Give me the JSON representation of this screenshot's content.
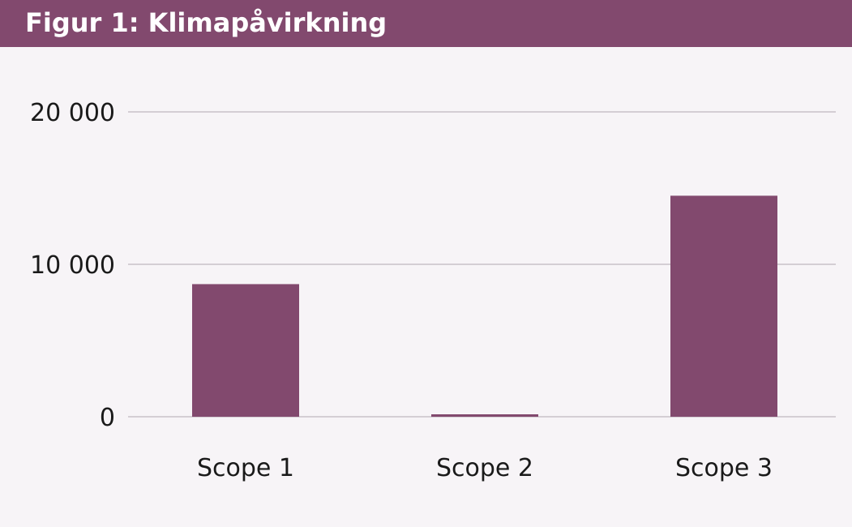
{
  "title": "Figur 1: Klimapåvirkning",
  "colors": {
    "bar": "#82496e",
    "header": "#82496e",
    "background": "#f7f4f7",
    "grid": "#c8c2c8"
  },
  "chart_data": {
    "type": "bar",
    "title": "Figur 1: Klimapåvirkning",
    "xlabel": "",
    "ylabel": "",
    "categories": [
      "Scope 1",
      "Scope 2",
      "Scope 3"
    ],
    "values": [
      8700,
      150,
      14500
    ],
    "ylim": [
      0,
      20000
    ],
    "yticks": [
      0,
      10000,
      20000
    ],
    "ytick_labels": [
      "0",
      "10 000",
      "20 000"
    ],
    "grid": true,
    "legend": "none"
  }
}
